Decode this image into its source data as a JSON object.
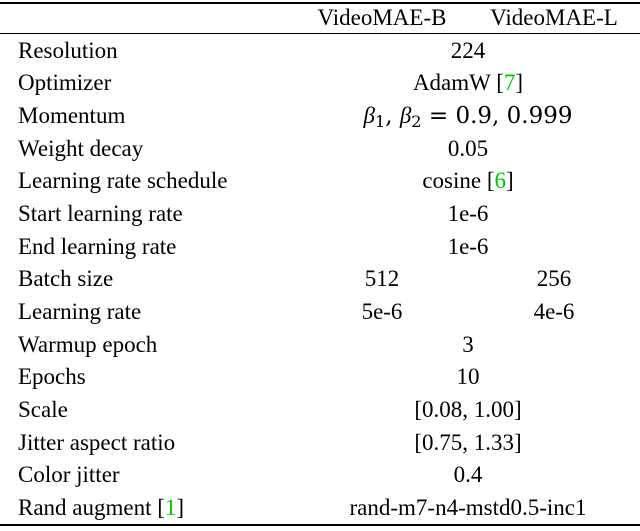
{
  "header": {
    "col1": "VideoMAE-B",
    "col2": "VideoMAE-L"
  },
  "rows": [
    {
      "name": "Resolution",
      "value": "224"
    },
    {
      "name": "Optimizer",
      "value": "AdamW",
      "cite": "7"
    },
    {
      "name": "Momentum",
      "value": "β1, β2 = 0.9, 0.999"
    },
    {
      "name": "Weight decay",
      "value": "0.05"
    },
    {
      "name": "Learning rate schedule",
      "value": "cosine",
      "cite": "6"
    },
    {
      "name": "Start learning rate",
      "value": "1e-6"
    },
    {
      "name": "End learning rate",
      "value": "1e-6"
    },
    {
      "name": "Batch size",
      "value_b": "512",
      "value_l": "256"
    },
    {
      "name": "Learning rate",
      "value_b": "5e-6",
      "value_l": "4e-6"
    },
    {
      "name": "Warmup epoch",
      "value": "3"
    },
    {
      "name": "Epochs",
      "value": "10"
    },
    {
      "name": "Scale",
      "value": "[0.08, 1.00]"
    },
    {
      "name": "Jitter aspect ratio",
      "value": "[0.75, 1.33]"
    },
    {
      "name": "Color jitter",
      "value": "0.4"
    },
    {
      "name": "Rand augment",
      "name_cite": "1",
      "value": "rand-m7-n4-mstd0.5-inc1"
    }
  ],
  "momentum_math": {
    "beta": "β",
    "sub1": "1",
    "sub2": "2",
    "rest": "= 0.9, 0.999"
  }
}
